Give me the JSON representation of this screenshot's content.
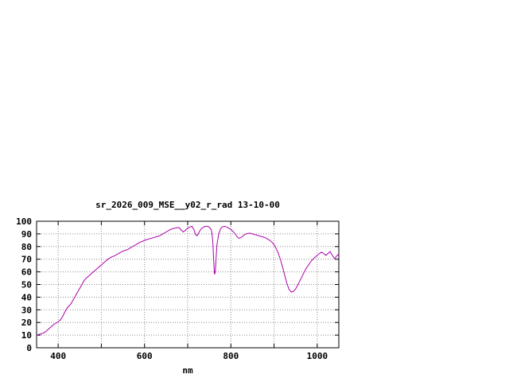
{
  "chart_data": {
    "type": "line",
    "title": "sr_2026_009_MSE__y02_r_rad 13-10-00",
    "xlabel": "nm",
    "ylabel": "",
    "xlim": [
      350,
      1050
    ],
    "ylim": [
      0,
      100
    ],
    "x_tick_labels": [
      400,
      600,
      800,
      1000
    ],
    "x_grid": [
      400,
      500,
      600,
      700,
      800,
      900,
      1000
    ],
    "y_ticks": [
      0,
      10,
      20,
      30,
      40,
      50,
      60,
      70,
      80,
      90,
      100
    ],
    "grid": true,
    "legend": "none",
    "line_color": "#aa00aa",
    "grid_color": "#8a8a8a",
    "axis_color": "#000000",
    "background_color": "#ffffff",
    "series": [
      {
        "name": "sr_2026_009_MSE__y02_r_rad",
        "x": [
          350,
          355,
          360,
          365,
          370,
          375,
          380,
          385,
          390,
          395,
          400,
          405,
          410,
          415,
          420,
          425,
          430,
          435,
          440,
          445,
          450,
          455,
          460,
          465,
          470,
          475,
          480,
          485,
          490,
          495,
          500,
          505,
          510,
          515,
          520,
          525,
          530,
          535,
          540,
          545,
          550,
          555,
          560,
          565,
          570,
          575,
          580,
          585,
          590,
          595,
          600,
          605,
          610,
          615,
          620,
          625,
          630,
          635,
          640,
          645,
          650,
          655,
          660,
          665,
          670,
          675,
          680,
          685,
          690,
          695,
          700,
          705,
          710,
          715,
          718,
          722,
          726,
          730,
          735,
          740,
          745,
          750,
          755,
          758,
          760,
          762,
          764,
          766,
          768,
          772,
          776,
          780,
          785,
          790,
          795,
          800,
          805,
          810,
          815,
          820,
          825,
          830,
          835,
          840,
          845,
          850,
          855,
          860,
          865,
          870,
          875,
          880,
          885,
          890,
          895,
          900,
          905,
          910,
          915,
          920,
          925,
          930,
          935,
          940,
          945,
          950,
          955,
          960,
          965,
          970,
          975,
          980,
          985,
          990,
          995,
          1000,
          1005,
          1010,
          1015,
          1020,
          1025,
          1030,
          1035,
          1040,
          1045,
          1050
        ],
        "y": [
          10,
          10.5,
          11,
          11.5,
          12.5,
          14,
          15.5,
          17,
          18.5,
          19.5,
          20.5,
          22,
          24.5,
          28,
          31,
          33,
          35,
          38,
          41,
          44,
          47,
          50,
          53,
          55,
          56.5,
          58,
          59.5,
          61,
          62.5,
          64,
          65.5,
          67,
          68.5,
          70,
          71,
          72,
          72.5,
          73.5,
          74.5,
          75.5,
          76.5,
          77,
          77.5,
          78.5,
          79.5,
          80.5,
          81.5,
          82.5,
          83.5,
          84,
          85,
          85.5,
          86,
          86.5,
          87,
          87.5,
          88,
          88.5,
          89.5,
          90.5,
          91.5,
          92.5,
          93.5,
          94,
          94.5,
          95,
          95,
          93,
          91.5,
          93,
          94.5,
          95.5,
          96,
          93,
          89.5,
          88.5,
          91,
          93.5,
          95,
          96,
          96,
          95.5,
          93,
          85,
          70,
          58,
          60,
          72,
          82,
          90,
          94,
          95.5,
          96,
          95.5,
          94.5,
          93.5,
          92,
          90,
          87.5,
          86.5,
          87.5,
          89,
          90,
          90.5,
          90.5,
          90,
          89.5,
          89,
          88.5,
          88,
          87.5,
          87,
          86,
          85,
          83.5,
          81.5,
          78.5,
          74.5,
          69.5,
          63.5,
          57,
          50.5,
          46,
          44,
          44.5,
          46.5,
          49.5,
          53,
          56.5,
          60,
          63,
          65.5,
          68,
          70,
          71.5,
          73,
          74.5,
          75.5,
          74.5,
          73,
          74.5,
          76,
          73,
          70.5,
          72.5,
          74
        ]
      }
    ]
  }
}
